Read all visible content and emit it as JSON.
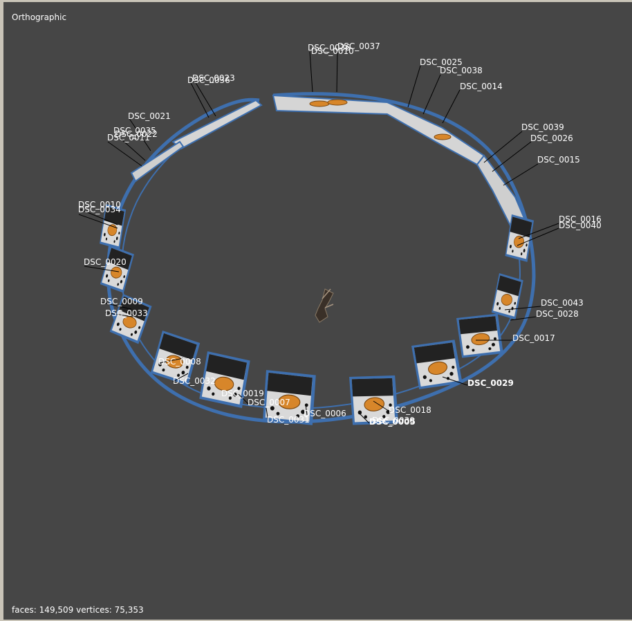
{
  "viewport": {
    "mode_label": "Orthographic",
    "stats": "faces: 149,509 vertices: 75,353",
    "frame_color": "#3e6fae",
    "background_color": "#464646"
  },
  "cameras": [
    "DSC_0036",
    "DSC_0010",
    "DSC_0037",
    "DSC_0025",
    "DSC_0038",
    "DSC_0014",
    "DSC_0039",
    "DSC_0026",
    "DSC_0015",
    "DSC_0016",
    "DSC_0040",
    "DSC_0043",
    "DSC_0028",
    "DSC_0017",
    "DSC_0029",
    "DSC_0018",
    "DSC_0005",
    "DSC_0030",
    "DSC_0031",
    "DSC_0006",
    "DSC_0007",
    "DSC_0019",
    "DSC_0032",
    "DSC_0008",
    "DSC_0009",
    "DSC_0033",
    "DSC_0020",
    "DSC_0010",
    "DSC_0034",
    "DSC_0021",
    "DSC_0035",
    "DSC_0022",
    "DSC_0011",
    "DSC_0023",
    "DSC_0036"
  ],
  "model_icon": "scanned-object-icon"
}
